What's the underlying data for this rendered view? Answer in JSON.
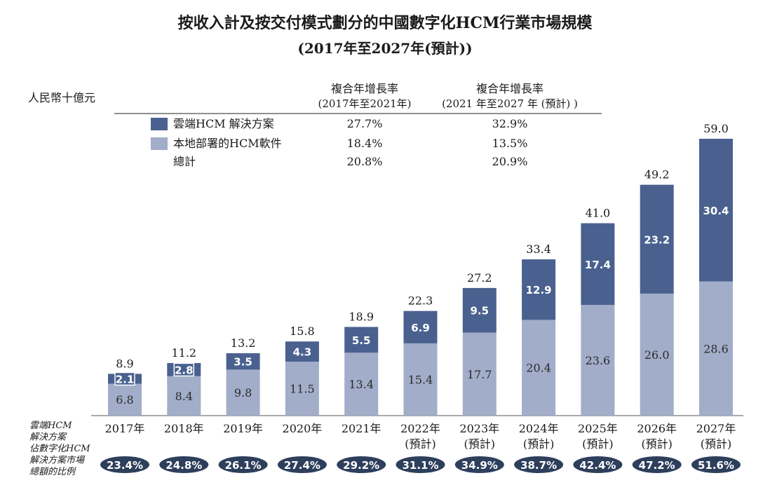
{
  "chart_data": {
    "type": "bar",
    "stacked": true,
    "title_line1": "按收入計及按交付模式劃分的中國數字化HCM行業市場規模",
    "title_line2": "(2017年至2027年(預計))",
    "unit_label": "人民幣十億元",
    "categories": [
      [
        "2017年"
      ],
      [
        "2018年"
      ],
      [
        "2019年"
      ],
      [
        "2020年"
      ],
      [
        "2021年"
      ],
      [
        "2022年",
        "(預計)"
      ],
      [
        "2023年",
        "(預計)"
      ],
      [
        "2024年",
        "(預計)"
      ],
      [
        "2025年",
        "(預計)"
      ],
      [
        "2026年",
        "(預計)"
      ],
      [
        "2027年",
        "(預計)"
      ]
    ],
    "series": [
      {
        "name": "本地部署的HCM軟件",
        "color": "#a1adc9",
        "values": [
          6.8,
          8.4,
          9.8,
          11.5,
          13.4,
          15.4,
          17.7,
          20.4,
          23.6,
          26.0,
          28.6
        ]
      },
      {
        "name": "雲端HCM 解決方案",
        "color": "#4a618f",
        "values": [
          2.1,
          2.8,
          3.5,
          4.3,
          5.5,
          6.9,
          9.5,
          12.9,
          17.4,
          23.2,
          30.4
        ]
      }
    ],
    "totals": [
      8.9,
      11.2,
      13.2,
      15.8,
      18.9,
      22.3,
      27.2,
      33.4,
      41.0,
      49.2,
      59.0
    ],
    "ylim": [
      0,
      60
    ],
    "cagr_table": {
      "col1_header": [
        "複合年增長率",
        "(2017年至2021年)"
      ],
      "col2_header": [
        "複合年增長率",
        "(2021 年至2027 年 (預計) )"
      ],
      "rows": [
        {
          "label": "雲端HCM 解決方案",
          "swatch": "#4a618f",
          "c1": "27.7%",
          "c2": "32.9%"
        },
        {
          "label": "本地部署的HCM軟件",
          "swatch": "#a1adc9",
          "c1": "18.4%",
          "c2": "13.5%"
        },
        {
          "label": "總計",
          "swatch": "",
          "c1": "20.8%",
          "c2": "20.9%"
        }
      ]
    },
    "share_label": [
      "雲端HCM",
      "解決方案",
      "佔數字化HCM",
      "解決方案市場",
      "總額的比例"
    ],
    "share_values": [
      "23.4%",
      "24.8%",
      "26.1%",
      "27.4%",
      "29.2%",
      "31.1%",
      "34.9%",
      "38.7%",
      "42.4%",
      "47.2%",
      "51.6%"
    ],
    "colors": {
      "oval": "#2e3f5c",
      "text": "#1a1a1a",
      "bar_label_light": "#ffffff",
      "bar_label_dark": "#2a2a2a"
    }
  }
}
